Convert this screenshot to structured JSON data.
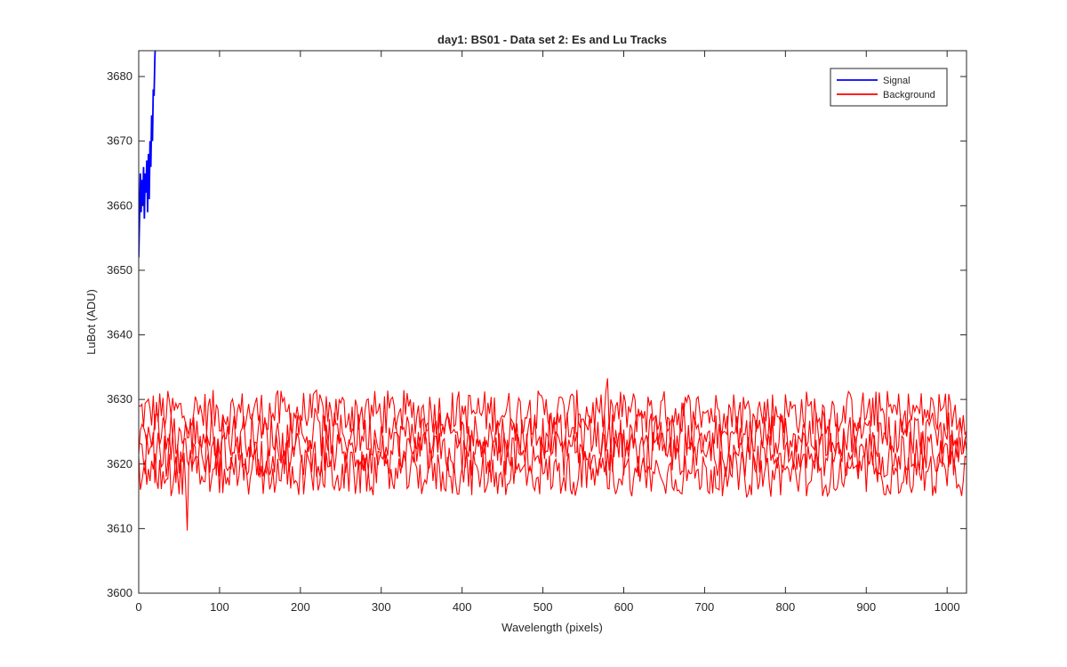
{
  "chart_data": {
    "type": "line",
    "title": "day1: BS01 - Data set 2: Es and Lu Tracks",
    "xlabel": "Wavelength (pixels)",
    "ylabel": "LuBot (ADU)",
    "xlim": [
      0,
      1024
    ],
    "ylim": [
      3600,
      3684
    ],
    "xticks": [
      0,
      100,
      200,
      300,
      400,
      500,
      600,
      700,
      800,
      900,
      1000
    ],
    "yticks": [
      3600,
      3610,
      3620,
      3630,
      3640,
      3650,
      3660,
      3670,
      3680
    ],
    "grid": false,
    "legend_position": "top-right",
    "series": [
      {
        "name": "Signal",
        "color": "#0000ff",
        "x": [
          0,
          1,
          2,
          3,
          4,
          5,
          6,
          7,
          8,
          9,
          10,
          11,
          12,
          13,
          14,
          15,
          16,
          17,
          18,
          19,
          20,
          21
        ],
        "y": [
          3652,
          3658,
          3665,
          3659,
          3664,
          3660,
          3666,
          3658,
          3665,
          3662,
          3667,
          3659,
          3668,
          3661,
          3670,
          3666,
          3674,
          3670,
          3678,
          3677,
          3683,
          3686
        ]
      },
      {
        "name": "Background",
        "color": "#ff0000",
        "x_range": [
          0,
          1024
        ],
        "band_centers": [
          3628,
          3624.5,
          3621.5,
          3618.5
        ],
        "band_amplitude": 3.5,
        "min_value": 3609.7,
        "min_at_x": 60,
        "max_value": 3633.8
      }
    ],
    "legend_entries": [
      {
        "label": "Signal",
        "color": "#0000ff"
      },
      {
        "label": "Background",
        "color": "#ff0000"
      }
    ]
  }
}
